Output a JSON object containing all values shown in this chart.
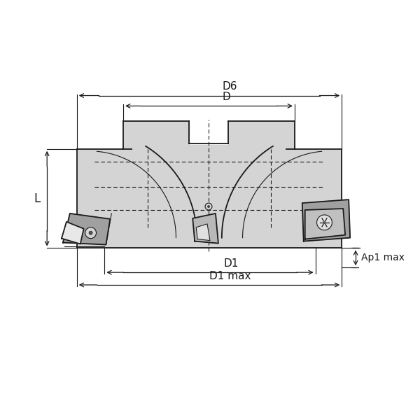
{
  "bg_color": "#ffffff",
  "line_color": "#1a1a1a",
  "fill_light": "#d4d4d4",
  "fill_dark": "#a0a0a0",
  "fill_insert": "#888888",
  "figsize": [
    6.0,
    6.0
  ],
  "dpi": 100,
  "labels": {
    "D6": "D6",
    "D": "D",
    "D1": "D1",
    "D1max": "D1 max",
    "L": "L",
    "Ap1max": "Ap1 max"
  }
}
